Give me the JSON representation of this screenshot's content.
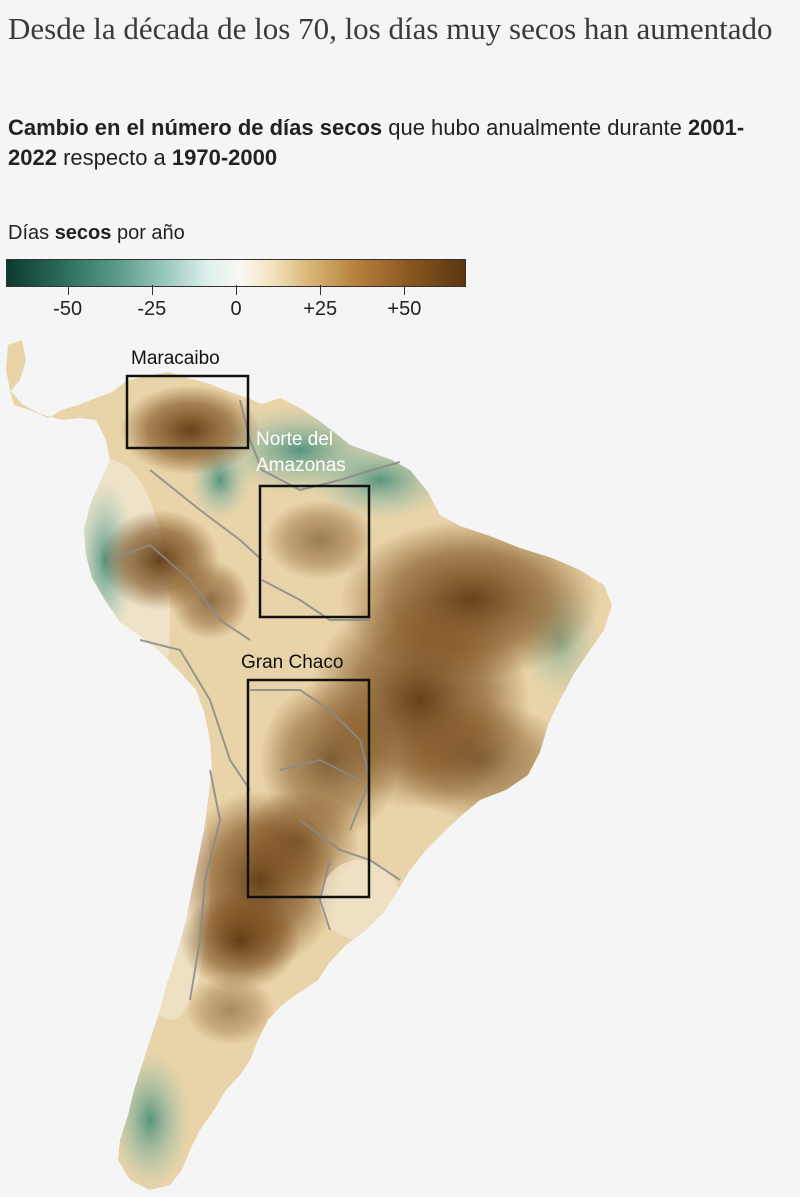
{
  "title": "Desde la década de los 70, los días muy secos han aumentado",
  "subtitle": {
    "part1_bold": "Cambio en el número de días secos",
    "part2": " que hubo anualmente durante ",
    "part3_bold": "2001-2022",
    "part4": " respecto a ",
    "part5_bold": "1970-2000"
  },
  "legend": {
    "title_part1": "Días ",
    "title_bold": "secos",
    "title_part2": " por año",
    "ticks": [
      {
        "value": -50,
        "label": "-50"
      },
      {
        "value": -25,
        "label": "-25"
      },
      {
        "value": 0,
        "label": "0"
      },
      {
        "value": 25,
        "label": "+25"
      },
      {
        "value": 50,
        "label": "+50"
      }
    ],
    "range": [
      -68,
      68
    ],
    "colors": {
      "wet_dark": "#0c3b30",
      "neutral": "#faf8f2",
      "dry_dark": "#5a3610"
    }
  },
  "regions": [
    {
      "name": "Maracaibo",
      "label_color": "#111111"
    },
    {
      "name": "Norte del Amazonas",
      "line1": "Norte del",
      "line2": "Amazonas",
      "label_color": "#ffffff"
    },
    {
      "name": "Gran Chaco",
      "label_color": "#111111"
    }
  ]
}
